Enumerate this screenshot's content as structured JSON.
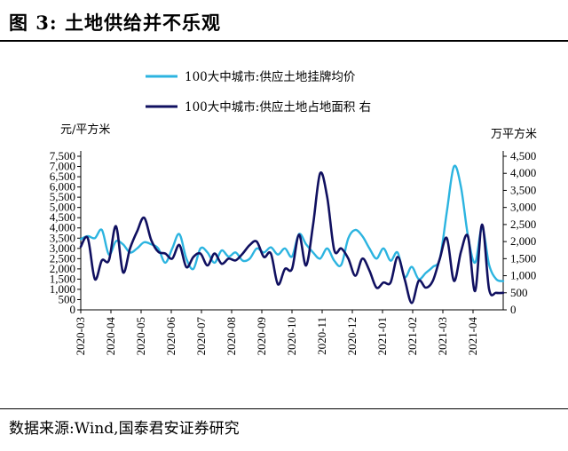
{
  "figure": {
    "title": "图 3:  土地供给并不乐观",
    "source": "数据来源:Wind,国泰君安证券研究"
  },
  "colors": {
    "price_series": "#2CB4E0",
    "area_series": "#101060"
  },
  "chart_data": {
    "type": "line",
    "title": "",
    "left_axis_unit": "元/平方米",
    "right_axis_unit": "万平方米",
    "left_ylim": [
      0,
      7500
    ],
    "right_ylim": [
      0,
      4500
    ],
    "left_ticks": [
      "0",
      "500",
      "1,000",
      "1,500",
      "2,000",
      "2,500",
      "3,000",
      "3,500",
      "4,000",
      "4,500",
      "5,000",
      "5,500",
      "6,000",
      "6,500",
      "7,000",
      "7,500"
    ],
    "right_ticks": [
      "0",
      "500",
      "1,000",
      "1,500",
      "2,000",
      "2,500",
      "3,000",
      "3,500",
      "4,000",
      "4,500"
    ],
    "x_tick_labels": [
      "2020-03",
      "2020-04",
      "2020-05",
      "2020-06",
      "2020-07",
      "2020-08",
      "2020-09",
      "2020-10",
      "2020-11",
      "2020-12",
      "2021-01",
      "2021-02",
      "2021-03",
      "2021-04"
    ],
    "x_week_range": [
      0,
      60
    ],
    "legend_position": "top-center",
    "series": [
      {
        "name": "100大中城市:供应土地挂牌均价",
        "axis": "left",
        "x": [
          0,
          1,
          2,
          3,
          4,
          5,
          6,
          7,
          8,
          9,
          10,
          11,
          12,
          13,
          14,
          15,
          16,
          17,
          18,
          19,
          20,
          21,
          22,
          23,
          24,
          25,
          26,
          27,
          28,
          29,
          30,
          31,
          32,
          33,
          34,
          35,
          36,
          37,
          38,
          39,
          40,
          41,
          42,
          43,
          44,
          45,
          46,
          47,
          48,
          49,
          50,
          51,
          52,
          53,
          54,
          55,
          56,
          57,
          58,
          59,
          60
        ],
        "values": [
          3450,
          3600,
          3500,
          3900,
          2700,
          3350,
          3200,
          2800,
          3000,
          3300,
          3200,
          3000,
          2300,
          3000,
          3700,
          2500,
          2000,
          3000,
          2800,
          2300,
          2900,
          2600,
          2800,
          2400,
          2500,
          3000,
          2800,
          3050,
          2700,
          3000,
          2600,
          3700,
          3200,
          2800,
          2500,
          3000,
          2400,
          2200,
          3500,
          3900,
          3600,
          3000,
          2500,
          3000,
          2400,
          2800,
          1600,
          2100,
          1500,
          1800,
          2100,
          2500,
          4800,
          7000,
          6000,
          3600,
          2300,
          4000,
          2200,
          1500,
          1400
        ]
      },
      {
        "name": "100大中城市:供应土地占地面积 右",
        "axis": "right",
        "x": [
          0,
          1,
          2,
          3,
          4,
          5,
          6,
          7,
          8,
          9,
          10,
          11,
          12,
          13,
          14,
          15,
          16,
          17,
          18,
          19,
          20,
          21,
          22,
          23,
          24,
          25,
          26,
          27,
          28,
          29,
          30,
          31,
          32,
          33,
          34,
          35,
          36,
          37,
          38,
          39,
          40,
          41,
          42,
          43,
          44,
          45,
          46,
          47,
          48,
          49,
          50,
          51,
          52,
          53,
          54,
          55,
          56,
          57,
          58,
          59,
          60
        ],
        "values": [
          1850,
          2100,
          900,
          1450,
          1450,
          2450,
          1100,
          1800,
          2300,
          2700,
          2050,
          1700,
          1650,
          1500,
          1900,
          1250,
          1550,
          1650,
          1300,
          1650,
          1350,
          1500,
          1450,
          1650,
          1900,
          2000,
          1550,
          1650,
          750,
          1200,
          1200,
          2200,
          1300,
          2500,
          4000,
          3300,
          1750,
          1800,
          1500,
          1000,
          1500,
          1150,
          650,
          800,
          800,
          1550,
          900,
          200,
          850,
          650,
          850,
          1500,
          2100,
          850,
          1700,
          2150,
          550,
          2500,
          600,
          500,
          500
        ]
      }
    ],
    "grid": false
  }
}
